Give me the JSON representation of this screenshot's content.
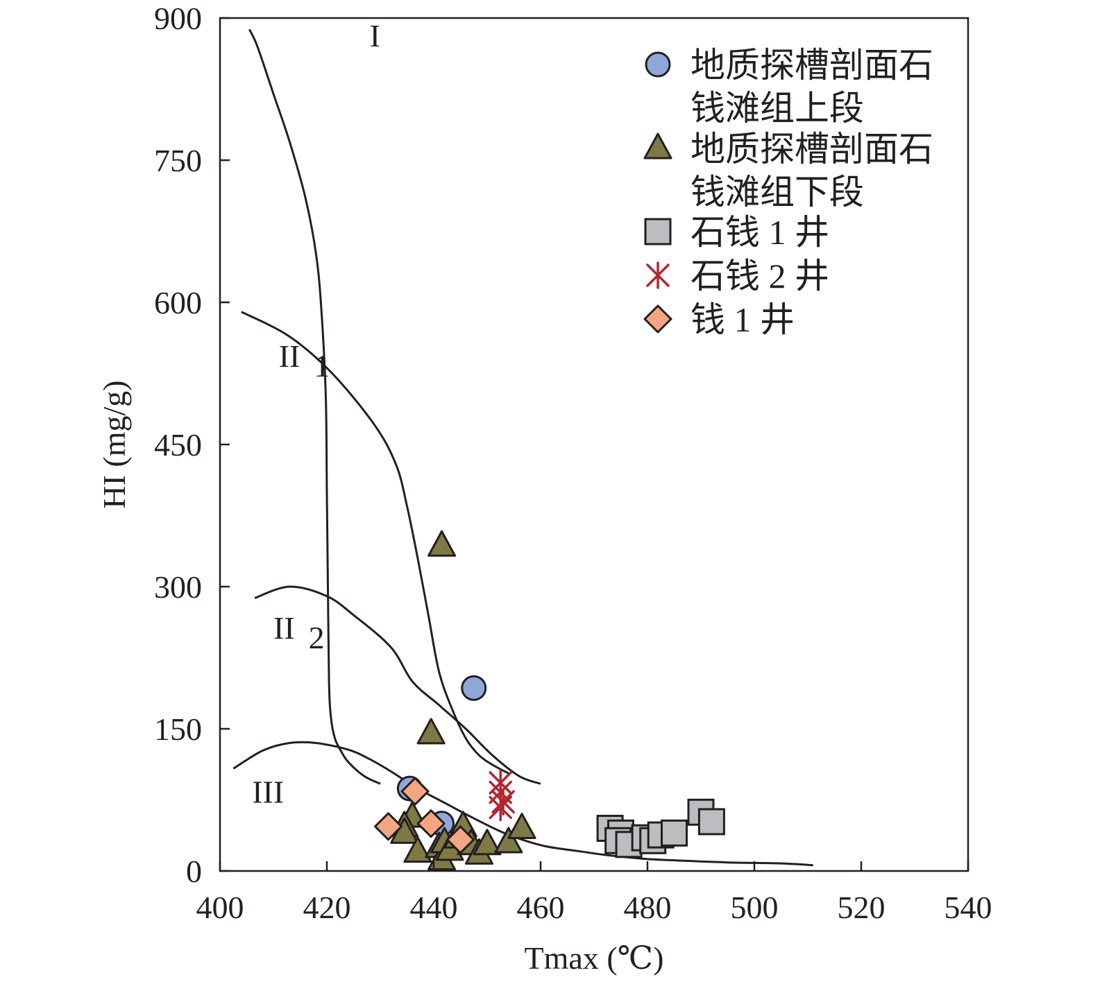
{
  "chart_data": {
    "type": "scatter",
    "xlabel": "Tmax (℃)",
    "ylabel": "HI (mg/g)",
    "xlim": [
      400,
      540
    ],
    "ylim": [
      0,
      900
    ],
    "x_ticks": [
      400,
      420,
      440,
      460,
      480,
      500,
      520,
      540
    ],
    "y_ticks": [
      0,
      150,
      300,
      450,
      600,
      750,
      900
    ],
    "grid": false,
    "legend_position": "top-right",
    "series": [
      {
        "name": "地质探槽剖面石钱滩组上段",
        "legend_lines": [
          "地质探槽剖面石",
          "钱滩组上段"
        ],
        "marker": "circle",
        "color": "#8ea9d8",
        "points": [
          [
            447.5,
            193
          ],
          [
            435.5,
            87
          ],
          [
            441.5,
            50
          ]
        ]
      },
      {
        "name": "地质探槽剖面石钱滩组下段",
        "legend_lines": [
          "地质探槽剖面石",
          "钱滩组下段"
        ],
        "marker": "triangle",
        "color": "#7d7a45",
        "points": [
          [
            441.5,
            343
          ],
          [
            439.5,
            145
          ],
          [
            436,
            57
          ],
          [
            434.5,
            47
          ],
          [
            434.5,
            40
          ],
          [
            437,
            20
          ],
          [
            441,
            25
          ],
          [
            441.5,
            12
          ],
          [
            442,
            30
          ],
          [
            443,
            22
          ],
          [
            444.5,
            35
          ],
          [
            445.5,
            47
          ],
          [
            447,
            28
          ],
          [
            448.5,
            18
          ],
          [
            450,
            28
          ],
          [
            454,
            30
          ],
          [
            456.5,
            45
          ]
        ]
      },
      {
        "name": "石钱1井",
        "legend_lines": [
          "石钱 1 井"
        ],
        "marker": "square",
        "color": "#bcbdc0",
        "points": [
          [
            473,
            45
          ],
          [
            475,
            40
          ],
          [
            474.5,
            32
          ],
          [
            476.5,
            28
          ],
          [
            479.5,
            35
          ],
          [
            481,
            32
          ],
          [
            482.5,
            38
          ],
          [
            485,
            40
          ],
          [
            490,
            62
          ],
          [
            492,
            52
          ]
        ]
      },
      {
        "name": "石钱2井",
        "legend_lines": [
          "石钱 2 井"
        ],
        "marker": "asterisk",
        "color": "#b1262f",
        "points": [
          [
            452.5,
            93
          ],
          [
            452.5,
            83
          ],
          [
            453,
            73
          ],
          [
            452.5,
            67
          ]
        ]
      },
      {
        "name": "钱1井",
        "legend_lines": [
          "钱 1 井"
        ],
        "marker": "diamond",
        "color": "#f4a582",
        "points": [
          [
            436.5,
            84
          ],
          [
            431.5,
            47
          ],
          [
            439.5,
            50
          ],
          [
            445,
            33
          ]
        ]
      }
    ],
    "reference_curves": [
      {
        "label": "I",
        "label_position": [
          428,
          870
        ],
        "points": [
          [
            405.5,
            888
          ],
          [
            407,
            870
          ],
          [
            410,
            820
          ],
          [
            413,
            770
          ],
          [
            416,
            710
          ],
          [
            418,
            650
          ],
          [
            419,
            590
          ],
          [
            419.8,
            500
          ],
          [
            420,
            400
          ],
          [
            420.2,
            300
          ],
          [
            420.4,
            200
          ],
          [
            420.8,
            160
          ],
          [
            421.5,
            140
          ],
          [
            422.5,
            128
          ],
          [
            424,
            115
          ],
          [
            427,
            100
          ],
          [
            430,
            92
          ]
        ]
      },
      {
        "label": "II 1",
        "label_position": [
          411,
          532
        ],
        "points": [
          [
            404,
            590
          ],
          [
            413,
            564
          ],
          [
            421,
            525
          ],
          [
            429,
            470
          ],
          [
            433,
            428
          ],
          [
            435,
            385
          ],
          [
            437,
            330
          ],
          [
            439,
            270
          ],
          [
            441,
            210
          ],
          [
            443.5,
            170
          ],
          [
            446,
            140
          ],
          [
            448.5,
            122
          ],
          [
            451,
            112
          ],
          [
            454,
            103
          ]
        ]
      },
      {
        "label": "II 2",
        "label_position": [
          410,
          245
        ],
        "points": [
          [
            406.5,
            288
          ],
          [
            413,
            300
          ],
          [
            420,
            290
          ],
          [
            425,
            270
          ],
          [
            432,
            236
          ],
          [
            436,
            200
          ],
          [
            441,
            175
          ],
          [
            446,
            150
          ],
          [
            451,
            122
          ],
          [
            456,
            100
          ],
          [
            460,
            92
          ]
        ]
      },
      {
        "label": "III",
        "label_position": [
          406,
          72
        ],
        "points": [
          [
            402.5,
            108
          ],
          [
            408,
            127
          ],
          [
            413,
            135
          ],
          [
            418,
            135
          ],
          [
            424,
            128
          ],
          [
            428,
            118
          ],
          [
            432,
            105
          ],
          [
            437,
            87
          ],
          [
            442,
            72
          ],
          [
            447,
            57
          ],
          [
            452,
            43
          ],
          [
            456,
            34
          ],
          [
            461,
            26
          ],
          [
            467,
            21
          ],
          [
            472,
            17
          ],
          [
            479,
            13
          ],
          [
            486,
            11
          ],
          [
            495,
            9
          ],
          [
            505,
            8
          ],
          [
            511,
            6
          ]
        ]
      }
    ]
  }
}
